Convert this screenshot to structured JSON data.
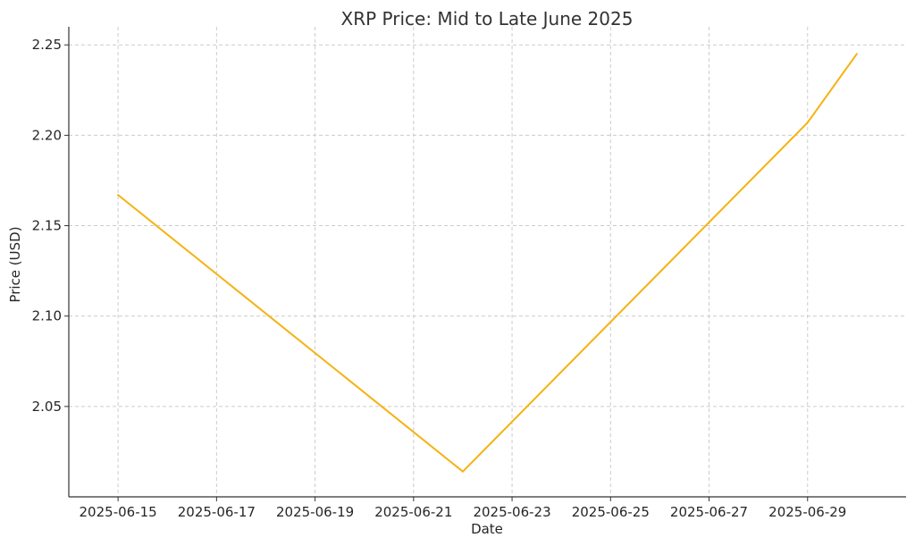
{
  "chart_data": {
    "type": "line",
    "title": "XRP Price: Mid to Late June 2025",
    "xlabel": "Date",
    "ylabel": "Price (USD)",
    "x": [
      "2025-06-15",
      "2025-06-22",
      "2025-06-29",
      "2025-06-30"
    ],
    "series": [
      {
        "values": [
          2.167,
          2.014,
          2.207,
          2.245
        ],
        "color": "#f5b211"
      }
    ],
    "xlim": [
      "2025-06-14",
      "2025-07-01"
    ],
    "ylim": [
      2.0,
      2.26
    ],
    "x_ticks": [
      "2025-06-15",
      "2025-06-17",
      "2025-06-19",
      "2025-06-21",
      "2025-06-23",
      "2025-06-25",
      "2025-06-27",
      "2025-06-29"
    ],
    "y_ticks": [
      "2.05",
      "2.10",
      "2.15",
      "2.20",
      "2.25"
    ],
    "grid": true,
    "legend": "none"
  }
}
